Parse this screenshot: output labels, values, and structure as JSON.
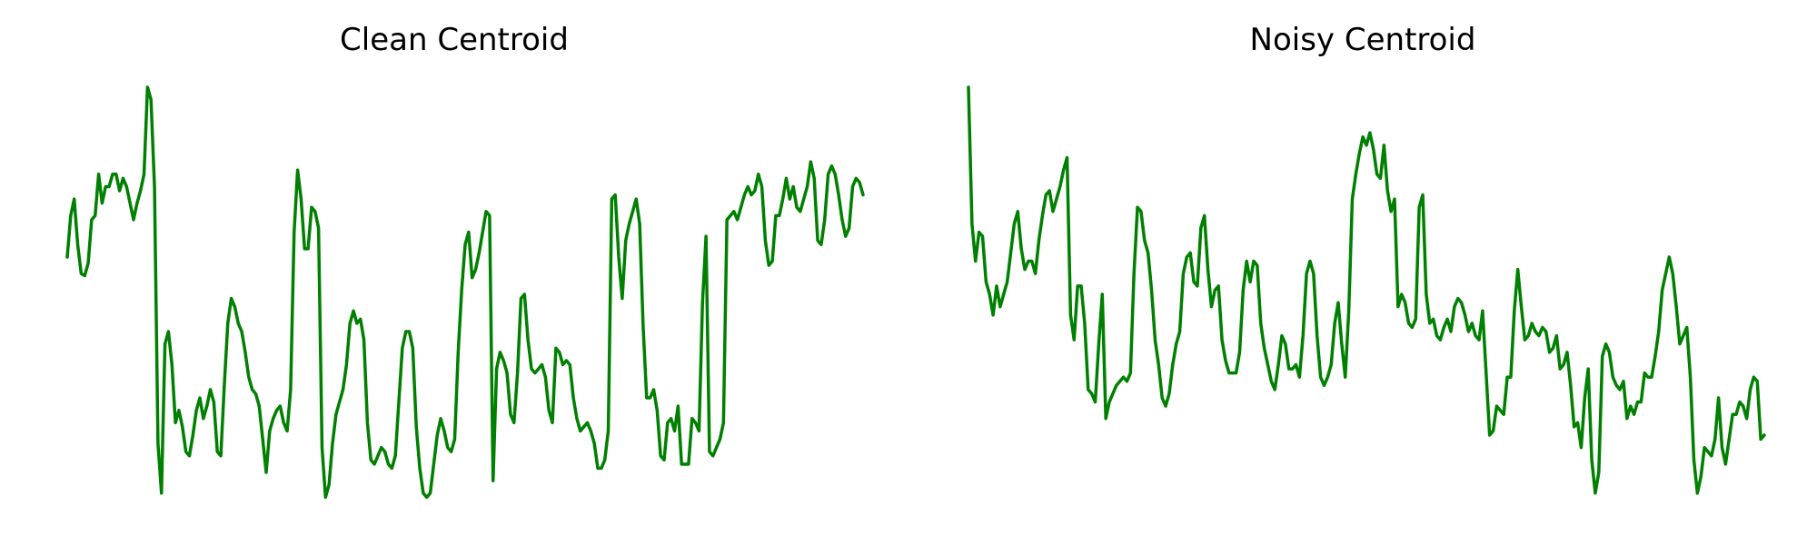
{
  "colors": {
    "line": "#008000",
    "background": "#ffffff"
  },
  "chart_data": [
    {
      "type": "line",
      "title": "Clean Centroid",
      "xlabel": "",
      "ylabel": "",
      "grid": false,
      "axes_visible": false,
      "legend": "none",
      "series": [
        {
          "values": [
            0.59,
            0.69,
            0.73,
            0.62,
            0.55,
            0.545,
            0.575,
            0.68,
            0.69,
            0.79,
            0.72,
            0.76,
            0.76,
            0.79,
            0.79,
            0.75,
            0.78,
            0.76,
            0.72,
            0.68,
            0.72,
            0.75,
            0.79,
            1.0,
            0.97,
            0.76,
            0.14,
            0.02,
            0.38,
            0.41,
            0.33,
            0.19,
            0.22,
            0.18,
            0.12,
            0.11,
            0.16,
            0.22,
            0.25,
            0.2,
            0.23,
            0.27,
            0.24,
            0.12,
            0.11,
            0.28,
            0.43,
            0.49,
            0.47,
            0.43,
            0.41,
            0.36,
            0.3,
            0.27,
            0.26,
            0.23,
            0.15,
            0.07,
            0.17,
            0.2,
            0.22,
            0.23,
            0.19,
            0.17,
            0.27,
            0.65,
            0.8,
            0.73,
            0.61,
            0.61,
            0.71,
            0.7,
            0.66,
            0.13,
            0.01,
            0.04,
            0.14,
            0.21,
            0.24,
            0.27,
            0.33,
            0.43,
            0.46,
            0.43,
            0.44,
            0.39,
            0.19,
            0.1,
            0.09,
            0.11,
            0.13,
            0.12,
            0.09,
            0.08,
            0.11,
            0.24,
            0.37,
            0.41,
            0.41,
            0.37,
            0.18,
            0.08,
            0.02,
            0.01,
            0.02,
            0.09,
            0.16,
            0.2,
            0.17,
            0.13,
            0.12,
            0.15,
            0.36,
            0.51,
            0.62,
            0.65,
            0.54,
            0.56,
            0.6,
            0.65,
            0.7,
            0.69,
            0.05,
            0.32,
            0.36,
            0.34,
            0.31,
            0.21,
            0.19,
            0.31,
            0.49,
            0.5,
            0.39,
            0.32,
            0.31,
            0.32,
            0.33,
            0.3,
            0.22,
            0.19,
            0.37,
            0.36,
            0.33,
            0.34,
            0.33,
            0.25,
            0.2,
            0.17,
            0.18,
            0.19,
            0.17,
            0.14,
            0.08,
            0.08,
            0.1,
            0.17,
            0.73,
            0.74,
            0.59,
            0.49,
            0.63,
            0.67,
            0.7,
            0.73,
            0.67,
            0.42,
            0.25,
            0.25,
            0.27,
            0.22,
            0.11,
            0.1,
            0.19,
            0.2,
            0.17,
            0.23,
            0.09,
            0.09,
            0.09,
            0.2,
            0.19,
            0.17,
            0.48,
            0.64,
            0.12,
            0.11,
            0.13,
            0.15,
            0.19,
            0.68,
            0.69,
            0.7,
            0.68,
            0.71,
            0.74,
            0.76,
            0.74,
            0.75,
            0.79,
            0.76,
            0.63,
            0.57,
            0.58,
            0.69,
            0.69,
            0.73,
            0.78,
            0.73,
            0.76,
            0.71,
            0.7,
            0.73,
            0.76,
            0.82,
            0.78,
            0.63,
            0.62,
            0.68,
            0.79,
            0.81,
            0.79,
            0.74,
            0.68,
            0.64,
            0.66,
            0.76,
            0.78,
            0.77,
            0.74
          ]
        }
      ]
    },
    {
      "type": "line",
      "title": "Noisy Centroid",
      "xlabel": "",
      "ylabel": "",
      "grid": false,
      "axes_visible": false,
      "legend": "none",
      "series": [
        {
          "values": [
            1.0,
            0.67,
            0.58,
            0.65,
            0.64,
            0.53,
            0.5,
            0.45,
            0.52,
            0.47,
            0.5,
            0.53,
            0.6,
            0.67,
            0.7,
            0.61,
            0.56,
            0.58,
            0.58,
            0.55,
            0.63,
            0.69,
            0.74,
            0.75,
            0.7,
            0.73,
            0.76,
            0.8,
            0.83,
            0.45,
            0.39,
            0.52,
            0.52,
            0.43,
            0.27,
            0.26,
            0.24,
            0.38,
            0.5,
            0.2,
            0.24,
            0.26,
            0.28,
            0.29,
            0.3,
            0.29,
            0.31,
            0.55,
            0.71,
            0.7,
            0.63,
            0.6,
            0.51,
            0.39,
            0.33,
            0.25,
            0.23,
            0.26,
            0.33,
            0.38,
            0.41,
            0.55,
            0.59,
            0.6,
            0.53,
            0.52,
            0.66,
            0.69,
            0.56,
            0.47,
            0.51,
            0.52,
            0.39,
            0.34,
            0.31,
            0.31,
            0.31,
            0.36,
            0.51,
            0.58,
            0.53,
            0.58,
            0.57,
            0.43,
            0.37,
            0.33,
            0.29,
            0.27,
            0.33,
            0.4,
            0.38,
            0.32,
            0.32,
            0.33,
            0.3,
            0.4,
            0.55,
            0.58,
            0.55,
            0.4,
            0.3,
            0.28,
            0.3,
            0.33,
            0.43,
            0.48,
            0.38,
            0.3,
            0.46,
            0.73,
            0.79,
            0.84,
            0.88,
            0.86,
            0.89,
            0.85,
            0.79,
            0.78,
            0.86,
            0.75,
            0.7,
            0.73,
            0.47,
            0.5,
            0.48,
            0.43,
            0.42,
            0.44,
            0.71,
            0.74,
            0.5,
            0.43,
            0.44,
            0.4,
            0.39,
            0.42,
            0.44,
            0.41,
            0.47,
            0.49,
            0.48,
            0.45,
            0.41,
            0.43,
            0.4,
            0.39,
            0.46,
            0.31,
            0.16,
            0.17,
            0.23,
            0.22,
            0.21,
            0.3,
            0.3,
            0.46,
            0.56,
            0.47,
            0.39,
            0.4,
            0.43,
            0.41,
            0.4,
            0.42,
            0.41,
            0.36,
            0.37,
            0.4,
            0.32,
            0.33,
            0.36,
            0.28,
            0.18,
            0.19,
            0.13,
            0.25,
            0.32,
            0.1,
            0.02,
            0.07,
            0.35,
            0.38,
            0.36,
            0.3,
            0.28,
            0.27,
            0.29,
            0.2,
            0.23,
            0.21,
            0.24,
            0.24,
            0.31,
            0.3,
            0.3,
            0.35,
            0.41,
            0.51,
            0.55,
            0.59,
            0.55,
            0.47,
            0.38,
            0.4,
            0.42,
            0.3,
            0.1,
            0.02,
            0.06,
            0.13,
            0.12,
            0.11,
            0.15,
            0.25,
            0.13,
            0.09,
            0.15,
            0.21,
            0.21,
            0.24,
            0.23,
            0.2,
            0.27,
            0.3,
            0.29,
            0.15,
            0.16
          ]
        }
      ]
    }
  ]
}
